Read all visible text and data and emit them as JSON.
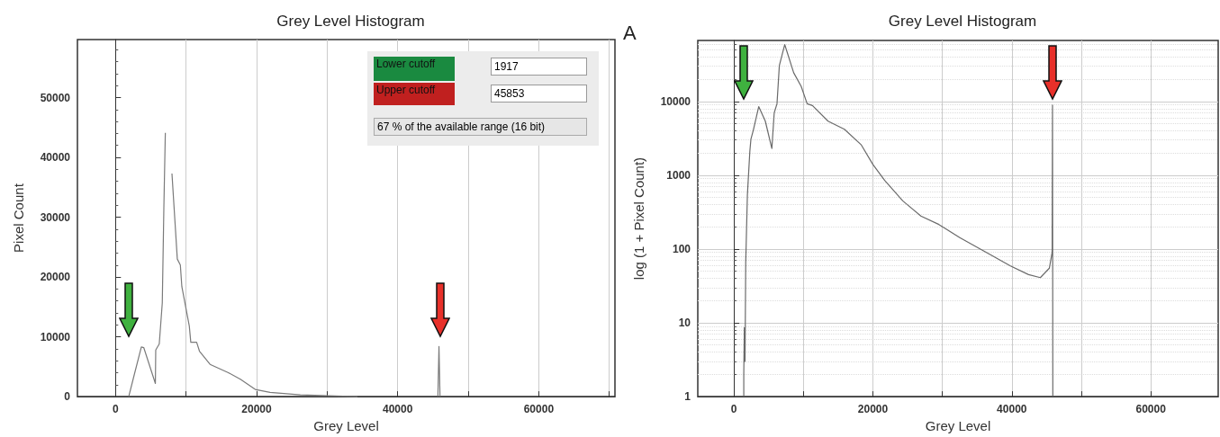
{
  "chart_data": [
    {
      "type": "line",
      "title": "Grey Level Histogram",
      "xlabel": "Grey Level",
      "ylabel": "Pixel Count",
      "xlim": [
        -5400,
        70800
      ],
      "ylim": [
        0,
        59700
      ],
      "xticks": [
        0,
        {
          "value": 10000,
          "label": null
        },
        20000,
        {
          "value": 30000,
          "label": null
        },
        40000,
        {
          "value": 50000,
          "label": null
        },
        60000,
        {
          "value": 70000,
          "label": null
        }
      ],
      "yticks": [
        0,
        10000,
        20000,
        30000,
        40000,
        50000
      ],
      "grid": "x",
      "marker": "none",
      "line_style": "solid",
      "annotations": [
        "Lower cutoff",
        "1917",
        "Upper cutoff",
        "45853",
        "67 % of the available range (16 bit)"
      ],
      "series": [
        {
          "color": "#7a7a7a",
          "x": [
            1870,
            2600,
            3660,
            4000,
            5650,
            5700,
            6200,
            6630,
            6850,
            7060,
            7400,
            7600,
            8000,
            8760,
            9190,
            9400,
            10460,
            10670,
            11500,
            11900,
            13400,
            16000,
            17700,
            19800,
            21900,
            26200,
            34300,
            40000,
            45700,
            45853,
            46000
          ],
          "values": [
            0,
            3400,
            8300,
            8200,
            2200,
            7800,
            8800,
            15700,
            31400,
            44100,
            null,
            null,
            37300,
            23000,
            22000,
            18400,
            11800,
            9100,
            9100,
            7600,
            5400,
            4000,
            2900,
            1200,
            700,
            300,
            0,
            null,
            0,
            8400,
            0
          ]
        }
      ]
    },
    {
      "type": "line",
      "title": "Grey Level Histogram",
      "xlabel": "Grey Level",
      "ylabel": "log (1 + Pixel Count)",
      "xlim": [
        -5200,
        69700
      ],
      "ylim": [
        1,
        67000
      ],
      "log": "y",
      "xticks": [
        0,
        {
          "value": 10000,
          "label": null
        },
        20000,
        {
          "value": 30000,
          "label": null
        },
        40000,
        {
          "value": 50000,
          "label": null
        },
        60000
      ],
      "yticks": [
        1,
        10,
        100,
        1000,
        10000
      ],
      "grid": true,
      "marker": "none",
      "line_style": "solid",
      "annotations": [
        "A"
      ],
      "series": [
        {
          "color": "#6a6a6a",
          "x": [
            1420,
            1420,
            1500,
            1600,
            1700,
            1940,
            2290,
            2450,
            2800,
            3570,
            4520,
            5460,
            5800,
            6200,
            6540,
            7310,
            8600,
            9680,
            10540,
            11300,
            13550,
            15900,
            18300,
            20000,
            21700,
            24300,
            26900,
            29500,
            32500,
            36800,
            39800,
            42400,
            44100,
            45400,
            45800,
            45853,
            45900
          ],
          "values": [
            1,
            2,
            8.6,
            3,
            65,
            540,
            2100,
            3100,
            4100,
            8500,
            5400,
            2300,
            7000,
            9300,
            30700,
            59000,
            24500,
            16000,
            9300,
            8800,
            5400,
            4200,
            2600,
            1400,
            850,
            450,
            280,
            215,
            143,
            85,
            59,
            45,
            41,
            55,
            90,
            8900,
            1
          ]
        }
      ]
    }
  ]
}
